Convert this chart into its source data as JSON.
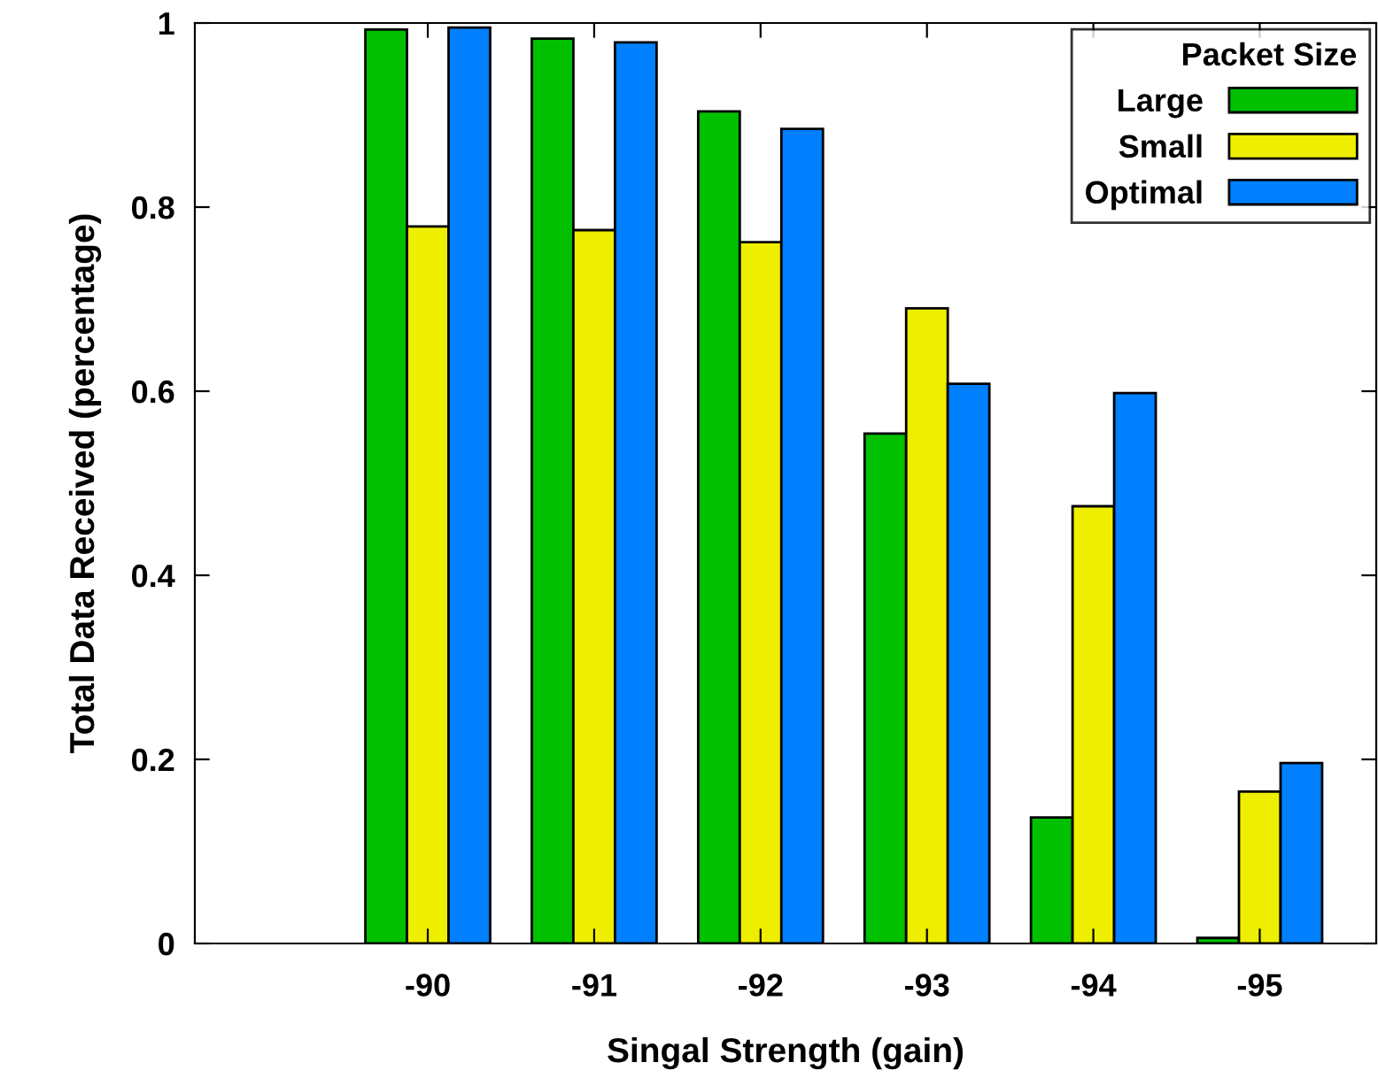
{
  "chart_data": {
    "type": "bar",
    "xlabel": "Singal Strength (gain)",
    "ylabel": "Total Data Received (percentage)",
    "legend_title": "Packet Size",
    "legend": "top right",
    "grid": false,
    "categories": [
      "-90",
      "-91",
      "-92",
      "-93",
      "-94",
      "-95"
    ],
    "ylim": [
      0,
      1
    ],
    "yticks": [
      0,
      0.2,
      0.4,
      0.6,
      0.8,
      1
    ],
    "series": [
      {
        "name": "Large",
        "color": "#00c000",
        "values": [
          0.993,
          0.983,
          0.904,
          0.554,
          0.137,
          0.006
        ]
      },
      {
        "name": "Small",
        "color": "#eeee00",
        "values": [
          0.779,
          0.775,
          0.762,
          0.69,
          0.475,
          0.165
        ]
      },
      {
        "name": "Optimal",
        "color": "#0080ff",
        "values": [
          0.995,
          0.979,
          0.885,
          0.608,
          0.598,
          0.196
        ]
      }
    ]
  }
}
